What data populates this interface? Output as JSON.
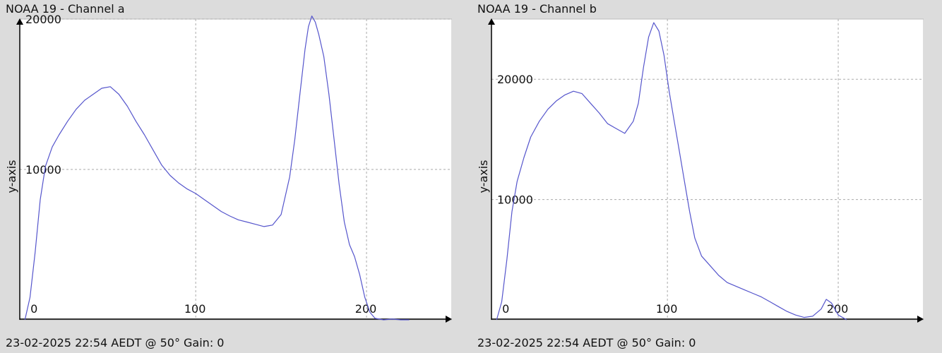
{
  "chart_data": [
    {
      "type": "line",
      "title": "NOAA 19 - Channel a",
      "footer": "23-02-2025 22:54 AEDT @ 50° Gain: 0",
      "ylabel": "y-axis",
      "xlabel": "",
      "xlim": [
        -3,
        250
      ],
      "ylim": [
        0,
        20000
      ],
      "xticks": [
        0,
        100,
        200
      ],
      "yticks": [
        10000,
        20000
      ],
      "grid": true,
      "color": "#5555cc",
      "series": [
        {
          "x": [
            0,
            3,
            6,
            9,
            12,
            16,
            20,
            25,
            30,
            35,
            40,
            45,
            50,
            55,
            60,
            65,
            70,
            75,
            80,
            85,
            90,
            95,
            100,
            105,
            110,
            115,
            120,
            125,
            130,
            135,
            140,
            145,
            150,
            155,
            158,
            161,
            164,
            166,
            168,
            170,
            172,
            175,
            178,
            181,
            184,
            187,
            190,
            193,
            196,
            199,
            202,
            205,
            210,
            215,
            220,
            225
          ],
          "values": [
            0,
            1500,
            4500,
            8000,
            10200,
            11500,
            12300,
            13200,
            14000,
            14600,
            15000,
            15400,
            15500,
            15000,
            14200,
            13200,
            12300,
            11300,
            10300,
            9600,
            9100,
            8700,
            8400,
            8000,
            7600,
            7200,
            6900,
            6650,
            6500,
            6350,
            6200,
            6300,
            7000,
            9500,
            12000,
            15000,
            18000,
            19500,
            20200,
            19800,
            19000,
            17500,
            15000,
            12000,
            9000,
            6500,
            5000,
            4200,
            3000,
            1500,
            500,
            100,
            0,
            50,
            0,
            0
          ]
        }
      ]
    },
    {
      "type": "line",
      "title": "NOAA 19 - Channel b",
      "footer": "23-02-2025 22:54 AEDT @ 50° Gain: 0",
      "ylabel": "y-axis",
      "xlabel": "",
      "xlim": [
        -3,
        250
      ],
      "ylim": [
        0,
        25000
      ],
      "xticks": [
        0,
        100,
        200
      ],
      "yticks": [
        10000,
        20000
      ],
      "grid": true,
      "color": "#5555cc",
      "series": [
        {
          "x": [
            0,
            3,
            6,
            9,
            12,
            16,
            20,
            25,
            30,
            35,
            40,
            45,
            50,
            55,
            60,
            65,
            70,
            75,
            80,
            83,
            86,
            89,
            92,
            95,
            98,
            101,
            104,
            107,
            110,
            113,
            116,
            120,
            125,
            130,
            135,
            140,
            145,
            150,
            155,
            160,
            165,
            170,
            175,
            180,
            185,
            190,
            193,
            196,
            200,
            205
          ],
          "values": [
            0,
            1500,
            5000,
            9000,
            11500,
            13500,
            15200,
            16500,
            17500,
            18200,
            18700,
            19000,
            18800,
            18000,
            17200,
            16300,
            15900,
            15500,
            16500,
            18000,
            21000,
            23500,
            24700,
            24000,
            22000,
            19000,
            16500,
            14000,
            11500,
            9000,
            6800,
            5300,
            4500,
            3700,
            3100,
            2800,
            2500,
            2200,
            1900,
            1500,
            1100,
            700,
            400,
            200,
            300,
            900,
            1700,
            1400,
            400,
            0
          ]
        }
      ]
    }
  ]
}
